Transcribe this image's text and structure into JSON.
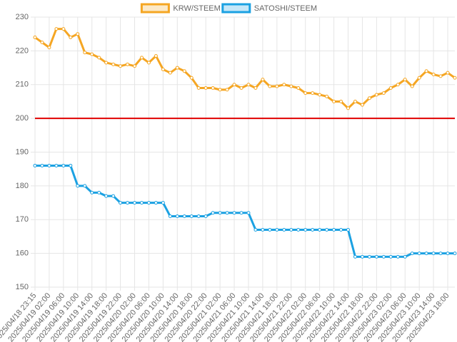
{
  "chart_data": {
    "type": "line",
    "categories": [
      "2025/04/18 23:15",
      null,
      "2025/04/19 02:00",
      null,
      "2025/04/19 06:00",
      null,
      "2025/04/19 10:00",
      null,
      "2025/04/19 14:00",
      null,
      "2025/04/19 18:00",
      null,
      "2025/04/19 22:00",
      null,
      "2025/04/20 02:00",
      null,
      "2025/04/20 06:00",
      null,
      "2025/04/20 10:00",
      null,
      "2025/04/20 14:00",
      null,
      "2025/04/20 18:00",
      null,
      "2025/04/20 22:00",
      null,
      "2025/04/21 02:00",
      null,
      "2025/04/21 06:00",
      null,
      "2025/04/21 10:00",
      null,
      "2025/04/21 14:00",
      null,
      "2025/04/21 18:00",
      null,
      "2025/04/21 22:00",
      null,
      "2025/04/22 02:00",
      null,
      "2025/04/22 06:00",
      null,
      "2025/04/22 10:00",
      null,
      "2025/04/22 14:00",
      null,
      "2025/04/22 18:00",
      null,
      "2025/04/22 22:00",
      null,
      "2025/04/23 02:00",
      null,
      "2025/04/23 06:00",
      null,
      "2025/04/23 10:00",
      null,
      "2025/04/23 14:00",
      null,
      "2025/04/23 18:00",
      null
    ],
    "series": [
      {
        "name": "KRW/STEEM",
        "color": "#f5a623",
        "values": [
          224,
          222.5,
          221,
          226.5,
          226.5,
          224,
          225,
          219.5,
          219,
          218,
          216.5,
          216,
          215.5,
          216,
          215.5,
          218,
          216.5,
          218.5,
          214.5,
          213.5,
          215,
          214,
          212,
          209,
          209,
          209,
          208.5,
          208.5,
          210,
          209,
          210,
          209,
          211.5,
          209.5,
          209.5,
          210,
          209.5,
          209,
          207.5,
          207.5,
          207,
          206.5,
          205,
          205,
          203,
          205,
          204,
          206,
          207,
          207.5,
          209,
          210,
          211.5,
          209.5,
          212,
          214,
          213,
          212.5,
          213.5,
          212
        ]
      },
      {
        "name": "SATOSHI/STEEM",
        "color": "#1ba1e2",
        "values": [
          186,
          186,
          186,
          186,
          186,
          186,
          180,
          180,
          178,
          178,
          177,
          177,
          175,
          175,
          175,
          175,
          175,
          175,
          175,
          171,
          171,
          171,
          171,
          171,
          171,
          172,
          172,
          172,
          172,
          172,
          172,
          167,
          167,
          167,
          167,
          167,
          167,
          167,
          167,
          167,
          167,
          167,
          167,
          167,
          167,
          159,
          159,
          159,
          159,
          159,
          159,
          159,
          159,
          160,
          160,
          160,
          160,
          160,
          160,
          160
        ]
      }
    ],
    "ylim": [
      150,
      230
    ],
    "yticks": [
      150,
      160,
      170,
      180,
      190,
      200,
      210,
      220,
      230
    ],
    "grid": true,
    "legend": "top",
    "reference_line": {
      "value": 200,
      "color": "#e00000"
    }
  }
}
